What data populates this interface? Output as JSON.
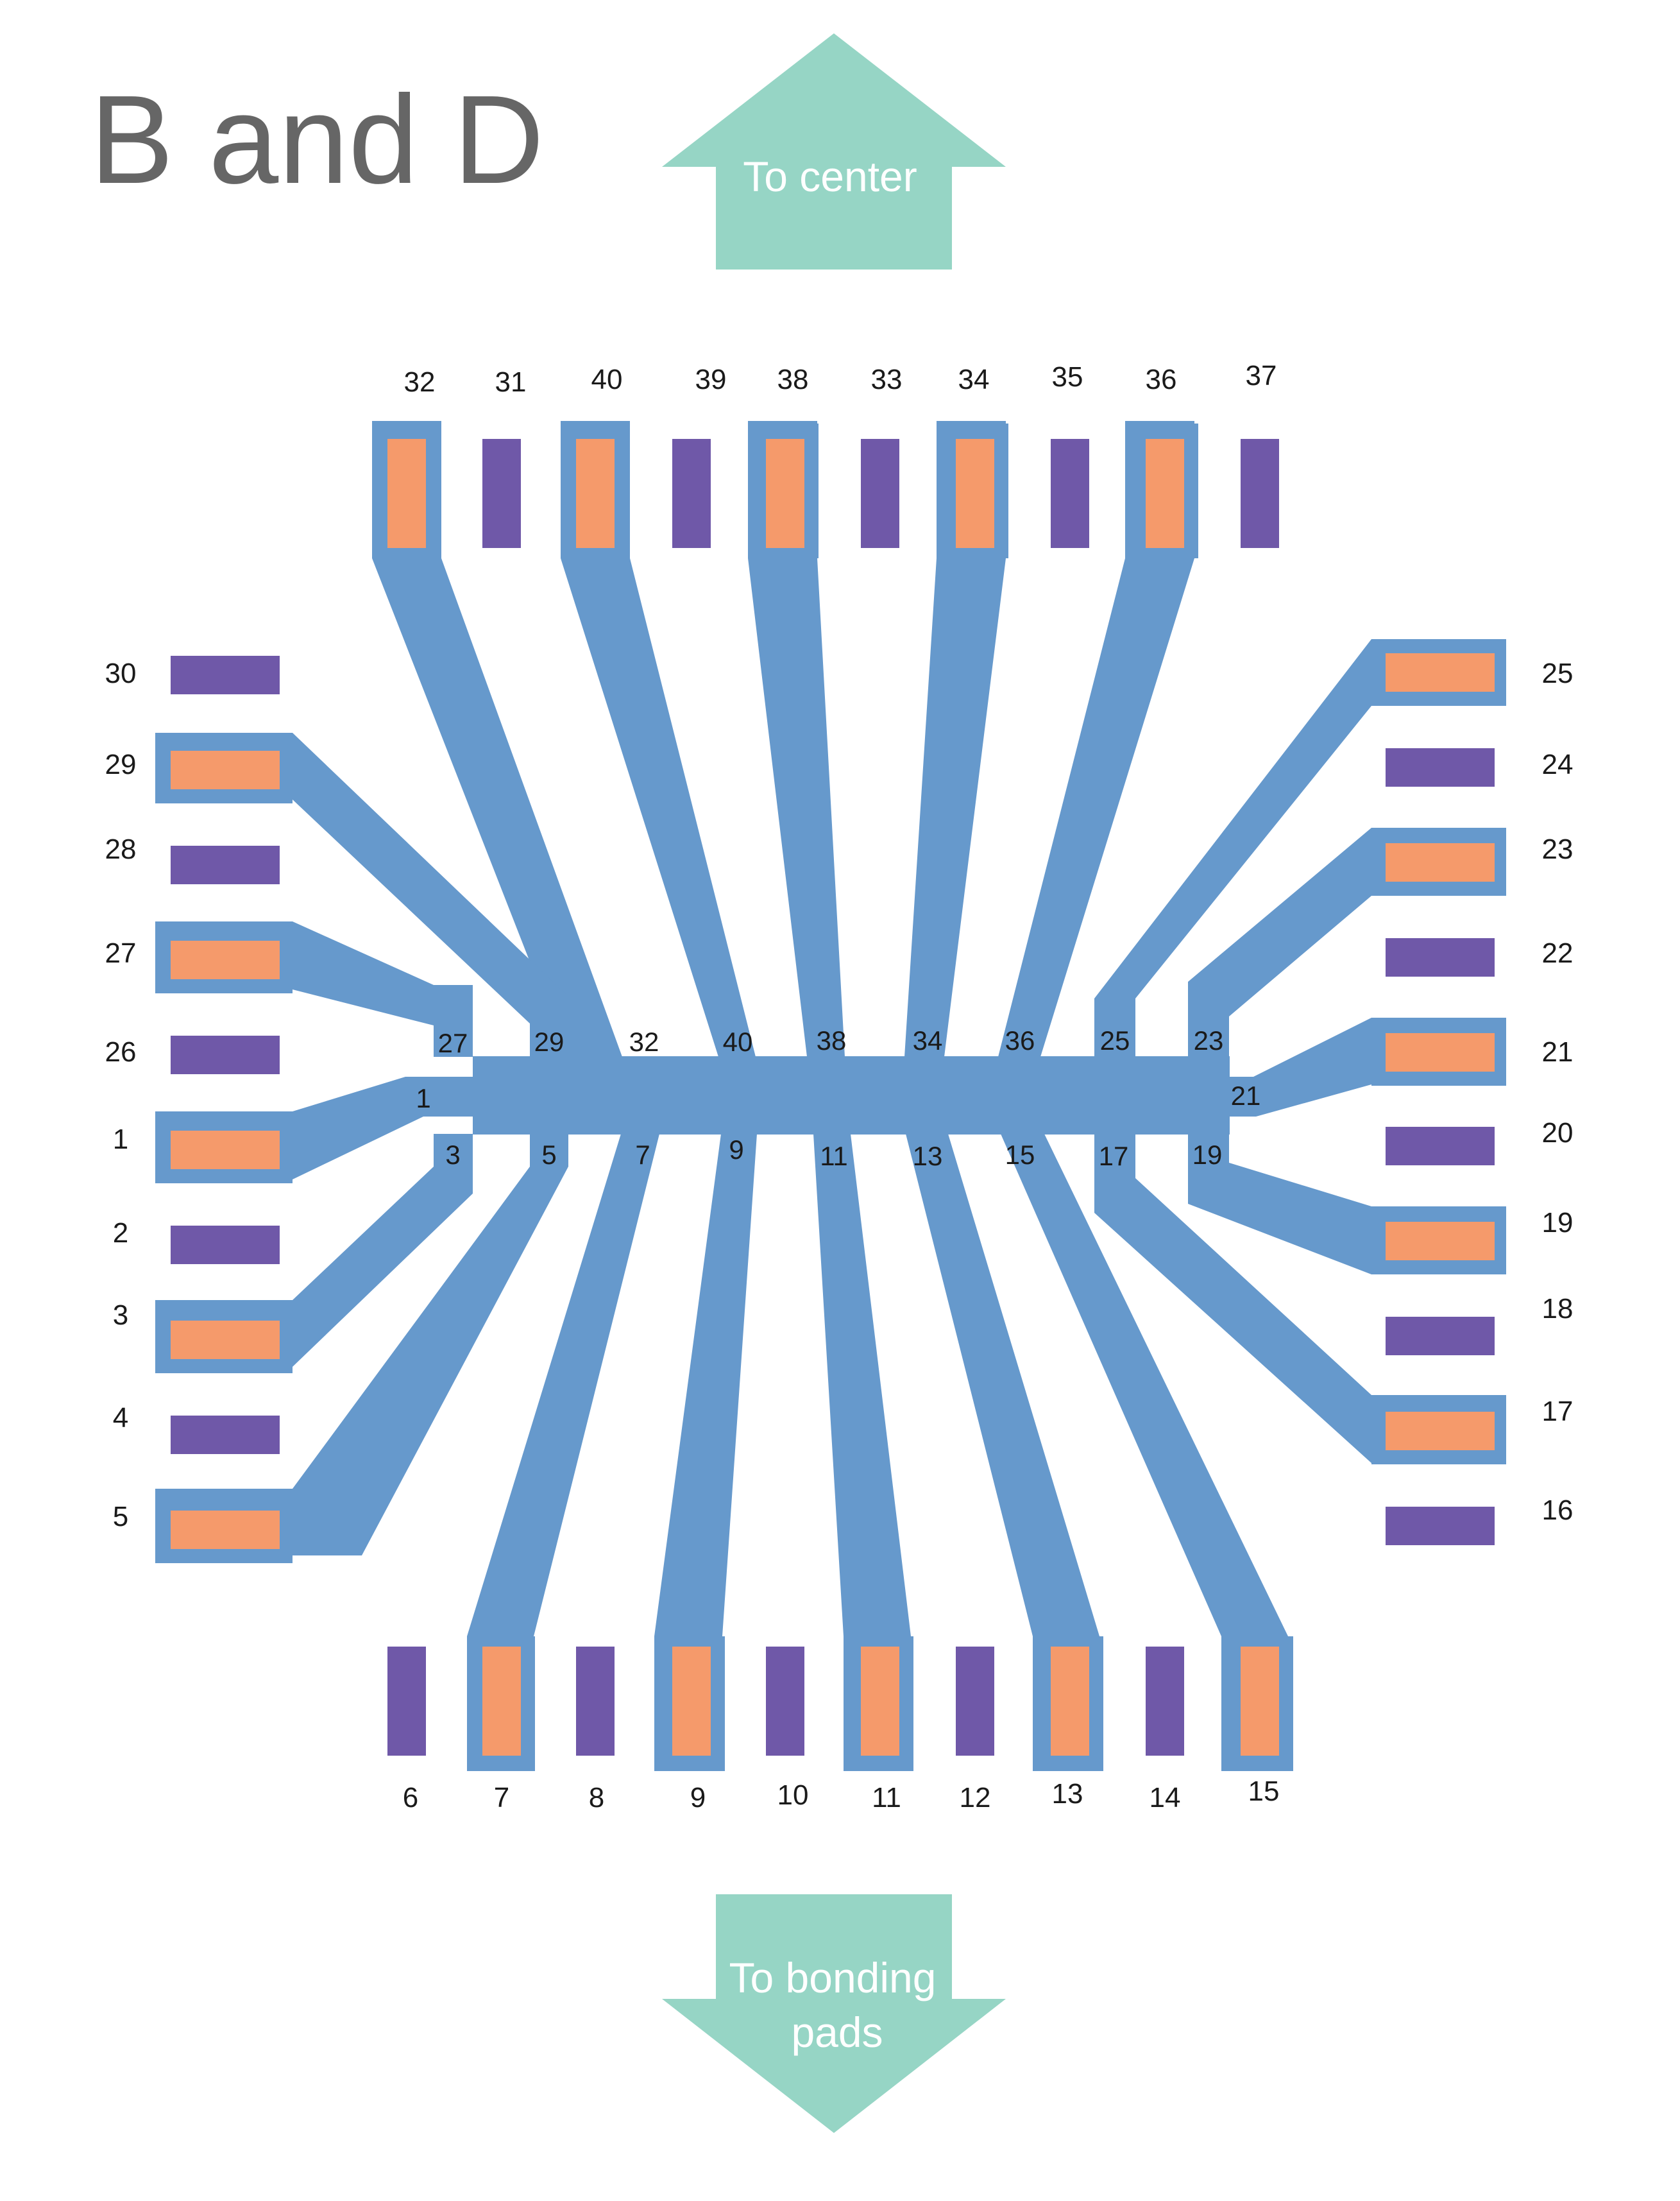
{
  "title": "B and D",
  "arrows": {
    "up_label": "To center",
    "down_label_line1": "To bonding",
    "down_label_line2": "pads"
  },
  "colors": {
    "trace": "#6699cc",
    "active_pad": "#f59a6b",
    "idle_pad": "#6f58a8",
    "arrow": "#96d5c5",
    "title": "#666666",
    "label": "#1a1a1a"
  },
  "pads": {
    "top": [
      {
        "label": "32",
        "active": true
      },
      {
        "label": "31",
        "active": false
      },
      {
        "label": "40",
        "active": true
      },
      {
        "label": "39",
        "active": false
      },
      {
        "label": "38",
        "active": true
      },
      {
        "label": "33",
        "active": false
      },
      {
        "label": "34",
        "active": true
      },
      {
        "label": "35",
        "active": false
      },
      {
        "label": "36",
        "active": true
      },
      {
        "label": "37",
        "active": false
      }
    ],
    "bottom": [
      {
        "label": "6",
        "active": false
      },
      {
        "label": "7",
        "active": true
      },
      {
        "label": "8",
        "active": false
      },
      {
        "label": "9",
        "active": true
      },
      {
        "label": "10",
        "active": false
      },
      {
        "label": "11",
        "active": true
      },
      {
        "label": "12",
        "active": false
      },
      {
        "label": "13",
        "active": true
      },
      {
        "label": "14",
        "active": false
      },
      {
        "label": "15",
        "active": true
      }
    ],
    "left": [
      {
        "label": "30",
        "active": false
      },
      {
        "label": "29",
        "active": true
      },
      {
        "label": "28",
        "active": false
      },
      {
        "label": "27",
        "active": true
      },
      {
        "label": "26",
        "active": false
      },
      {
        "label": "1",
        "active": true
      },
      {
        "label": "2",
        "active": false
      },
      {
        "label": "3",
        "active": true
      },
      {
        "label": "4",
        "active": false
      },
      {
        "label": "5",
        "active": true
      }
    ],
    "right": [
      {
        "label": "25",
        "active": true
      },
      {
        "label": "24",
        "active": false
      },
      {
        "label": "23",
        "active": true
      },
      {
        "label": "22",
        "active": false
      },
      {
        "label": "21",
        "active": true
      },
      {
        "label": "20",
        "active": false
      },
      {
        "label": "19",
        "active": true
      },
      {
        "label": "18",
        "active": false
      },
      {
        "label": "17",
        "active": true
      },
      {
        "label": "16",
        "active": false
      }
    ]
  },
  "trace_labels": {
    "upper": [
      "27",
      "29",
      "32",
      "40",
      "38",
      "34",
      "36",
      "25",
      "23"
    ],
    "lower": [
      "3",
      "5",
      "7",
      "9",
      "11",
      "13",
      "15",
      "17",
      "19"
    ],
    "left_end": "1",
    "right_end": "21"
  }
}
